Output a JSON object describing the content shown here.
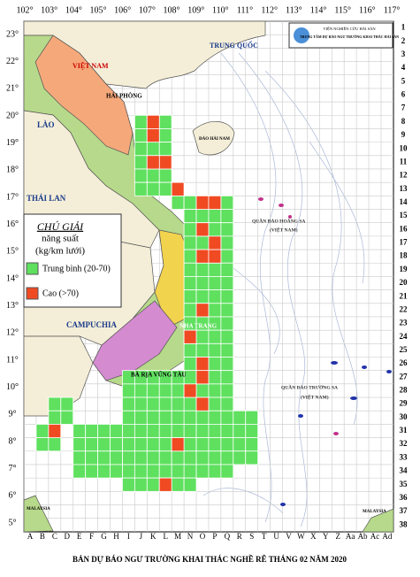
{
  "header": {
    "org": "VIỆN NGHIÊN CỨU HẢI SẢN",
    "unit": "TRUNG TÂM DỰ BÁO NGƯ TRƯỜNG KHAI THÁC HẢI SẢN"
  },
  "longitude_labels": [
    "102°",
    "103°",
    "104°",
    "105°",
    "106°",
    "107°",
    "108°",
    "109°",
    "110°",
    "111°",
    "112°",
    "113°",
    "114°",
    "115°",
    "116°",
    "117°"
  ],
  "latitude_labels": [
    "23°",
    "22°",
    "21°",
    "20°",
    "19°",
    "18°",
    "17°",
    "16°",
    "15°",
    "14°",
    "13°",
    "12°",
    "11°",
    "10°",
    "9°",
    "8°",
    "7°",
    "6°",
    "5°"
  ],
  "row_labels": [
    "1",
    "2",
    "3",
    "4",
    "5",
    "6",
    "7",
    "8",
    "9",
    "10",
    "11",
    "12",
    "13",
    "14",
    "15",
    "16",
    "17",
    "18",
    "19",
    "20",
    "21",
    "22",
    "23",
    "24",
    "25",
    "26",
    "27",
    "28",
    "29",
    "30",
    "31",
    "32",
    "33",
    "34",
    "35",
    "36",
    "37",
    "38"
  ],
  "column_labels": [
    "A",
    "B",
    "C",
    "D",
    "E",
    "F",
    "G",
    "H",
    "I",
    "J",
    "K",
    "L",
    "M",
    "N",
    "O",
    "P",
    "Q",
    "R",
    "S",
    "T",
    "U",
    "V",
    "W",
    "X",
    "Y",
    "Z",
    "Aa",
    "Ab",
    "Ac",
    "Ad"
  ],
  "places": {
    "china": "TRUNG QUỐC",
    "vietnam": "VIỆT NAM",
    "laos": "LÀO",
    "thailand": "THÁI LAN",
    "cambodia": "CAMPUCHIA",
    "haiphong": "HẢI PHÒNG",
    "hainan": "ĐẢO HẢI NAM",
    "hoangsa": "QUẦN ĐẢO HOÀNG SA",
    "hoangsa_vn": "(VIỆT NAM)",
    "truongsa": "QUẦN ĐẢO TRƯỜNG SA",
    "truongsa_vn": "(VIỆT NAM)",
    "nhatrang": "NHA TRANG",
    "baria": "BÀ RỊA VŨNG TÀU",
    "malaysia_w": "MALAYSIA",
    "malaysia_e": "MALAYSIA"
  },
  "legend": {
    "title": "CHÚ GIẢI",
    "subtitle": "năng suất",
    "unit": "(kg/km lưới)",
    "medium": "Trung bình (20-70)",
    "high": "Cao (>70)"
  },
  "title": "BẢN DỰ BÁO NGƯ TRƯỜNG KHAI THÁC NGHỀ RÊ THÁNG 02 NĂM 2020"
}
